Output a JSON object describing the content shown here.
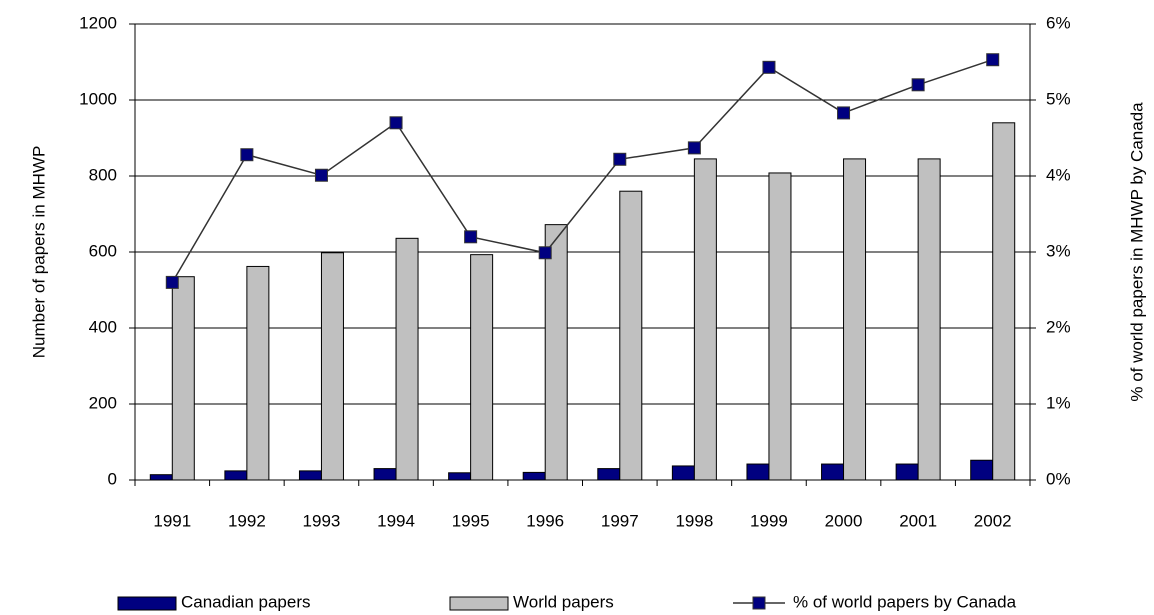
{
  "chart_data": {
    "type": "bar_line",
    "y_label": "Number of papers in MHWP",
    "y2_label": "% of world papers in MHWP by Canada",
    "categories": [
      "1991",
      "1992",
      "1993",
      "1994",
      "1995",
      "1996",
      "1997",
      "1998",
      "1999",
      "2000",
      "2001",
      "2002"
    ],
    "series": [
      {
        "name": "Canadian papers",
        "type": "bar",
        "color": "#000080",
        "values": [
          14,
          24,
          24,
          30,
          19,
          20,
          30,
          37,
          42,
          42,
          42,
          52
        ]
      },
      {
        "name": "World papers",
        "type": "bar",
        "color": "#c0c0c0",
        "values": [
          535,
          562,
          598,
          636,
          593,
          672,
          760,
          845,
          808,
          845,
          845,
          940
        ]
      },
      {
        "name": "% of world papers by Canada",
        "type": "line",
        "axis": "y2",
        "color": "#333333",
        "marker_color": "#000080",
        "values": [
          2.6,
          4.28,
          4.01,
          4.7,
          3.2,
          2.99,
          4.22,
          4.37,
          5.43,
          4.83,
          5.2,
          5.53
        ]
      }
    ],
    "ylim": [
      0,
      1200
    ],
    "yticks": [
      0,
      200,
      400,
      600,
      800,
      1000,
      1200
    ],
    "y2lim": [
      0,
      6
    ],
    "y2ticks": [
      {
        "value": 0,
        "label": "0%"
      },
      {
        "value": 1,
        "label": "1%"
      },
      {
        "value": 2,
        "label": "2%"
      },
      {
        "value": 3,
        "label": "3%"
      },
      {
        "value": 4,
        "label": "4%"
      },
      {
        "value": 5,
        "label": "5%"
      },
      {
        "value": 6,
        "label": "6%"
      }
    ],
    "grid": true,
    "legend": "bottom"
  }
}
